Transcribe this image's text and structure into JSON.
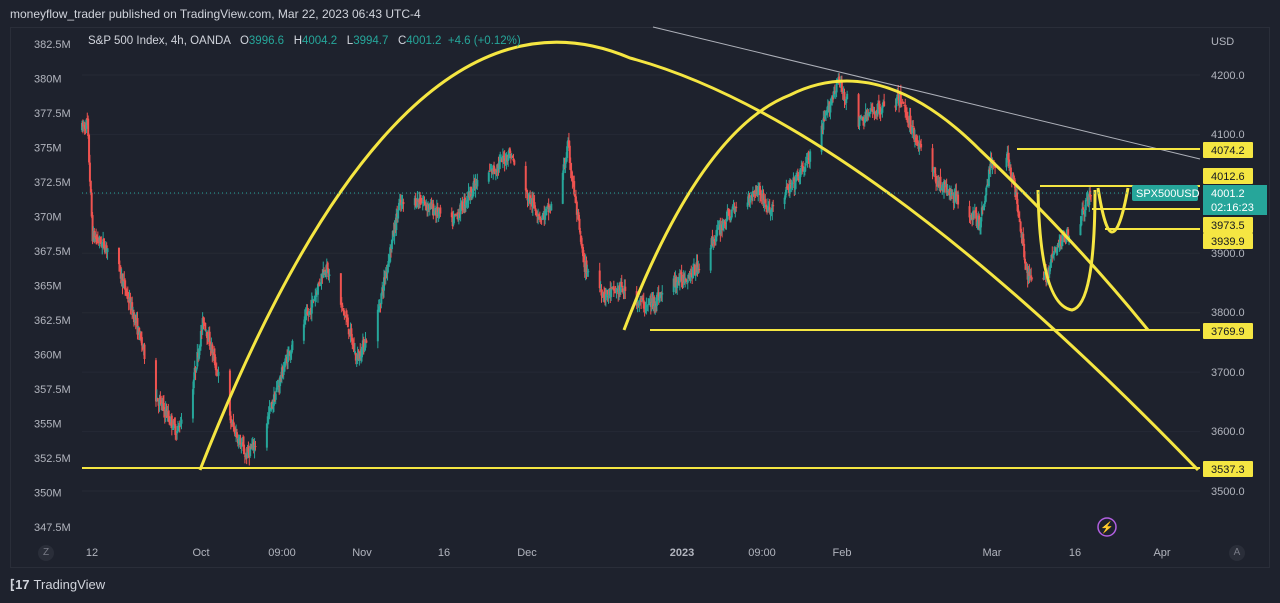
{
  "header": {
    "published_line": "moneyflow_trader published on TradingView.com, Mar 22, 2023 06:43 UTC-4"
  },
  "legend": {
    "symbol": "S&P 500 Index, 4h, OANDA",
    "o_label": "O",
    "o_value": "3996.6",
    "h_label": "H",
    "h_value": "4004.2",
    "l_label": "L",
    "l_value": "3994.7",
    "c_label": "C",
    "c_value": "4001.2",
    "change": "+4.6 (+0.12%)"
  },
  "right_axis": {
    "currency": "USD",
    "ticks": [
      "4200.0",
      "4100.0",
      "3900.0",
      "3800.0",
      "3700.0",
      "3600.0",
      "3500.0"
    ],
    "labels": {
      "l4074": "4074.2",
      "l4012": "4012.6",
      "sym": "SPX500USD",
      "price": "4001.2",
      "timer": "02:16:23",
      "l3973": "3973.5",
      "l3939": "3939.9",
      "l3769": "3769.9",
      "l3537": "3537.3"
    }
  },
  "left_axis": {
    "ticks": [
      "382.5M",
      "380M",
      "377.5M",
      "375M",
      "372.5M",
      "370M",
      "367.5M",
      "365M",
      "362.5M",
      "360M",
      "357.5M",
      "355M",
      "352.5M",
      "350M",
      "347.5M"
    ]
  },
  "x_axis": {
    "ticks": [
      "12",
      "Oct",
      "09:00",
      "Nov",
      "16",
      "Dec",
      "2023",
      "09:00",
      "Feb",
      "Mar",
      "16",
      "Apr"
    ]
  },
  "corners": {
    "left": "Z",
    "right": "A"
  },
  "footer": {
    "brand": "TradingView"
  },
  "colors": {
    "background": "#1e222d",
    "up_candle": "#26a69a",
    "down_candle": "#ef5350",
    "annotation": "#f5e642",
    "trendline": "#d1d4dc",
    "last_price": "#26a69a"
  },
  "chart_data": {
    "type": "candlestick",
    "title": "S&P 500 Index, 4h, OANDA",
    "ylabel": "USD",
    "ylim": [
      3455,
      4255
    ],
    "x_range": [
      "2022-09-12",
      "2023-04-05"
    ],
    "key_levels": [
      4074.2,
      4012.6,
      3973.5,
      3939.9,
      3769.9,
      3537.3
    ],
    "last_price": 4001.2,
    "path": [
      {
        "x": "2022-09-12",
        "y": 4110
      },
      {
        "x": "2022-09-13",
        "y": 4120
      },
      {
        "x": "2022-09-14",
        "y": 3930
      },
      {
        "x": "2022-09-18",
        "y": 3900
      },
      {
        "x": "2022-09-22",
        "y": 3790
      },
      {
        "x": "2022-09-26",
        "y": 3660
      },
      {
        "x": "2022-09-30",
        "y": 3600
      },
      {
        "x": "2022-10-03",
        "y": 3680
      },
      {
        "x": "2022-10-05",
        "y": 3790
      },
      {
        "x": "2022-10-10",
        "y": 3620
      },
      {
        "x": "2022-10-13",
        "y": 3560
      },
      {
        "x": "2022-10-16",
        "y": 3590
      },
      {
        "x": "2022-10-21",
        "y": 3730
      },
      {
        "x": "2022-10-25",
        "y": 3800
      },
      {
        "x": "2022-10-28",
        "y": 3880
      },
      {
        "x": "2022-11-01",
        "y": 3790
      },
      {
        "x": "2022-11-03",
        "y": 3720
      },
      {
        "x": "2022-11-07",
        "y": 3800
      },
      {
        "x": "2022-11-11",
        "y": 3980
      },
      {
        "x": "2022-11-15",
        "y": 3990
      },
      {
        "x": "2022-11-21",
        "y": 3950
      },
      {
        "x": "2022-11-25",
        "y": 4010
      },
      {
        "x": "2022-11-30",
        "y": 4050
      },
      {
        "x": "2022-12-02",
        "y": 4070
      },
      {
        "x": "2022-12-05",
        "y": 4000
      },
      {
        "x": "2022-12-08",
        "y": 3960
      },
      {
        "x": "2022-12-11",
        "y": 3990
      },
      {
        "x": "2022-12-13",
        "y": 4080
      },
      {
        "x": "2022-12-16",
        "y": 3880
      },
      {
        "x": "2022-12-20",
        "y": 3830
      },
      {
        "x": "2022-12-23",
        "y": 3840
      },
      {
        "x": "2022-12-28",
        "y": 3810
      },
      {
        "x": "2023-01-02",
        "y": 3850
      },
      {
        "x": "2023-01-06",
        "y": 3870
      },
      {
        "x": "2023-01-12",
        "y": 3960
      },
      {
        "x": "2023-01-18",
        "y": 4010
      },
      {
        "x": "2023-01-20",
        "y": 3970
      },
      {
        "x": "2023-01-25",
        "y": 4020
      },
      {
        "x": "2023-01-29",
        "y": 4080
      },
      {
        "x": "2023-02-02",
        "y": 4190
      },
      {
        "x": "2023-02-06",
        "y": 4120
      },
      {
        "x": "2023-02-09",
        "y": 4140
      },
      {
        "x": "2023-02-14",
        "y": 4160
      },
      {
        "x": "2023-02-17",
        "y": 4090
      },
      {
        "x": "2023-02-21",
        "y": 4020
      },
      {
        "x": "2023-02-27",
        "y": 3970
      },
      {
        "x": "2023-03-01",
        "y": 3950
      },
      {
        "x": "2023-03-03",
        "y": 4050
      },
      {
        "x": "2023-03-06",
        "y": 4070
      },
      {
        "x": "2023-03-08",
        "y": 3990
      },
      {
        "x": "2023-03-10",
        "y": 3860
      },
      {
        "x": "2023-03-13",
        "y": 3850
      },
      {
        "x": "2023-03-15",
        "y": 3900
      },
      {
        "x": "2023-03-17",
        "y": 3930
      },
      {
        "x": "2023-03-20",
        "y": 3960
      },
      {
        "x": "2023-03-22",
        "y": 4001
      }
    ]
  }
}
